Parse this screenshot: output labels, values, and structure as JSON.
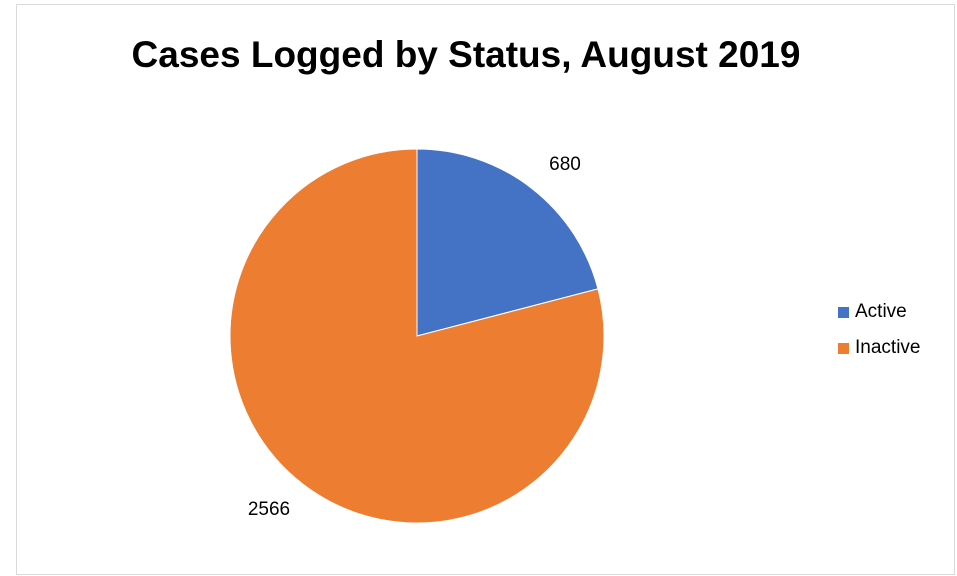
{
  "chart_data": {
    "type": "pie",
    "title": "Cases Logged by Status, August 2019",
    "categories": [
      "Active",
      "Inactive"
    ],
    "values": [
      680,
      2566
    ],
    "colors": [
      "#4472C4",
      "#ED7D31"
    ],
    "data_labels": [
      "680",
      "2566"
    ],
    "legend": {
      "position": "right",
      "entries": [
        "Active",
        "Inactive"
      ]
    },
    "start_angle": "12 o'clock",
    "direction": "clockwise"
  }
}
